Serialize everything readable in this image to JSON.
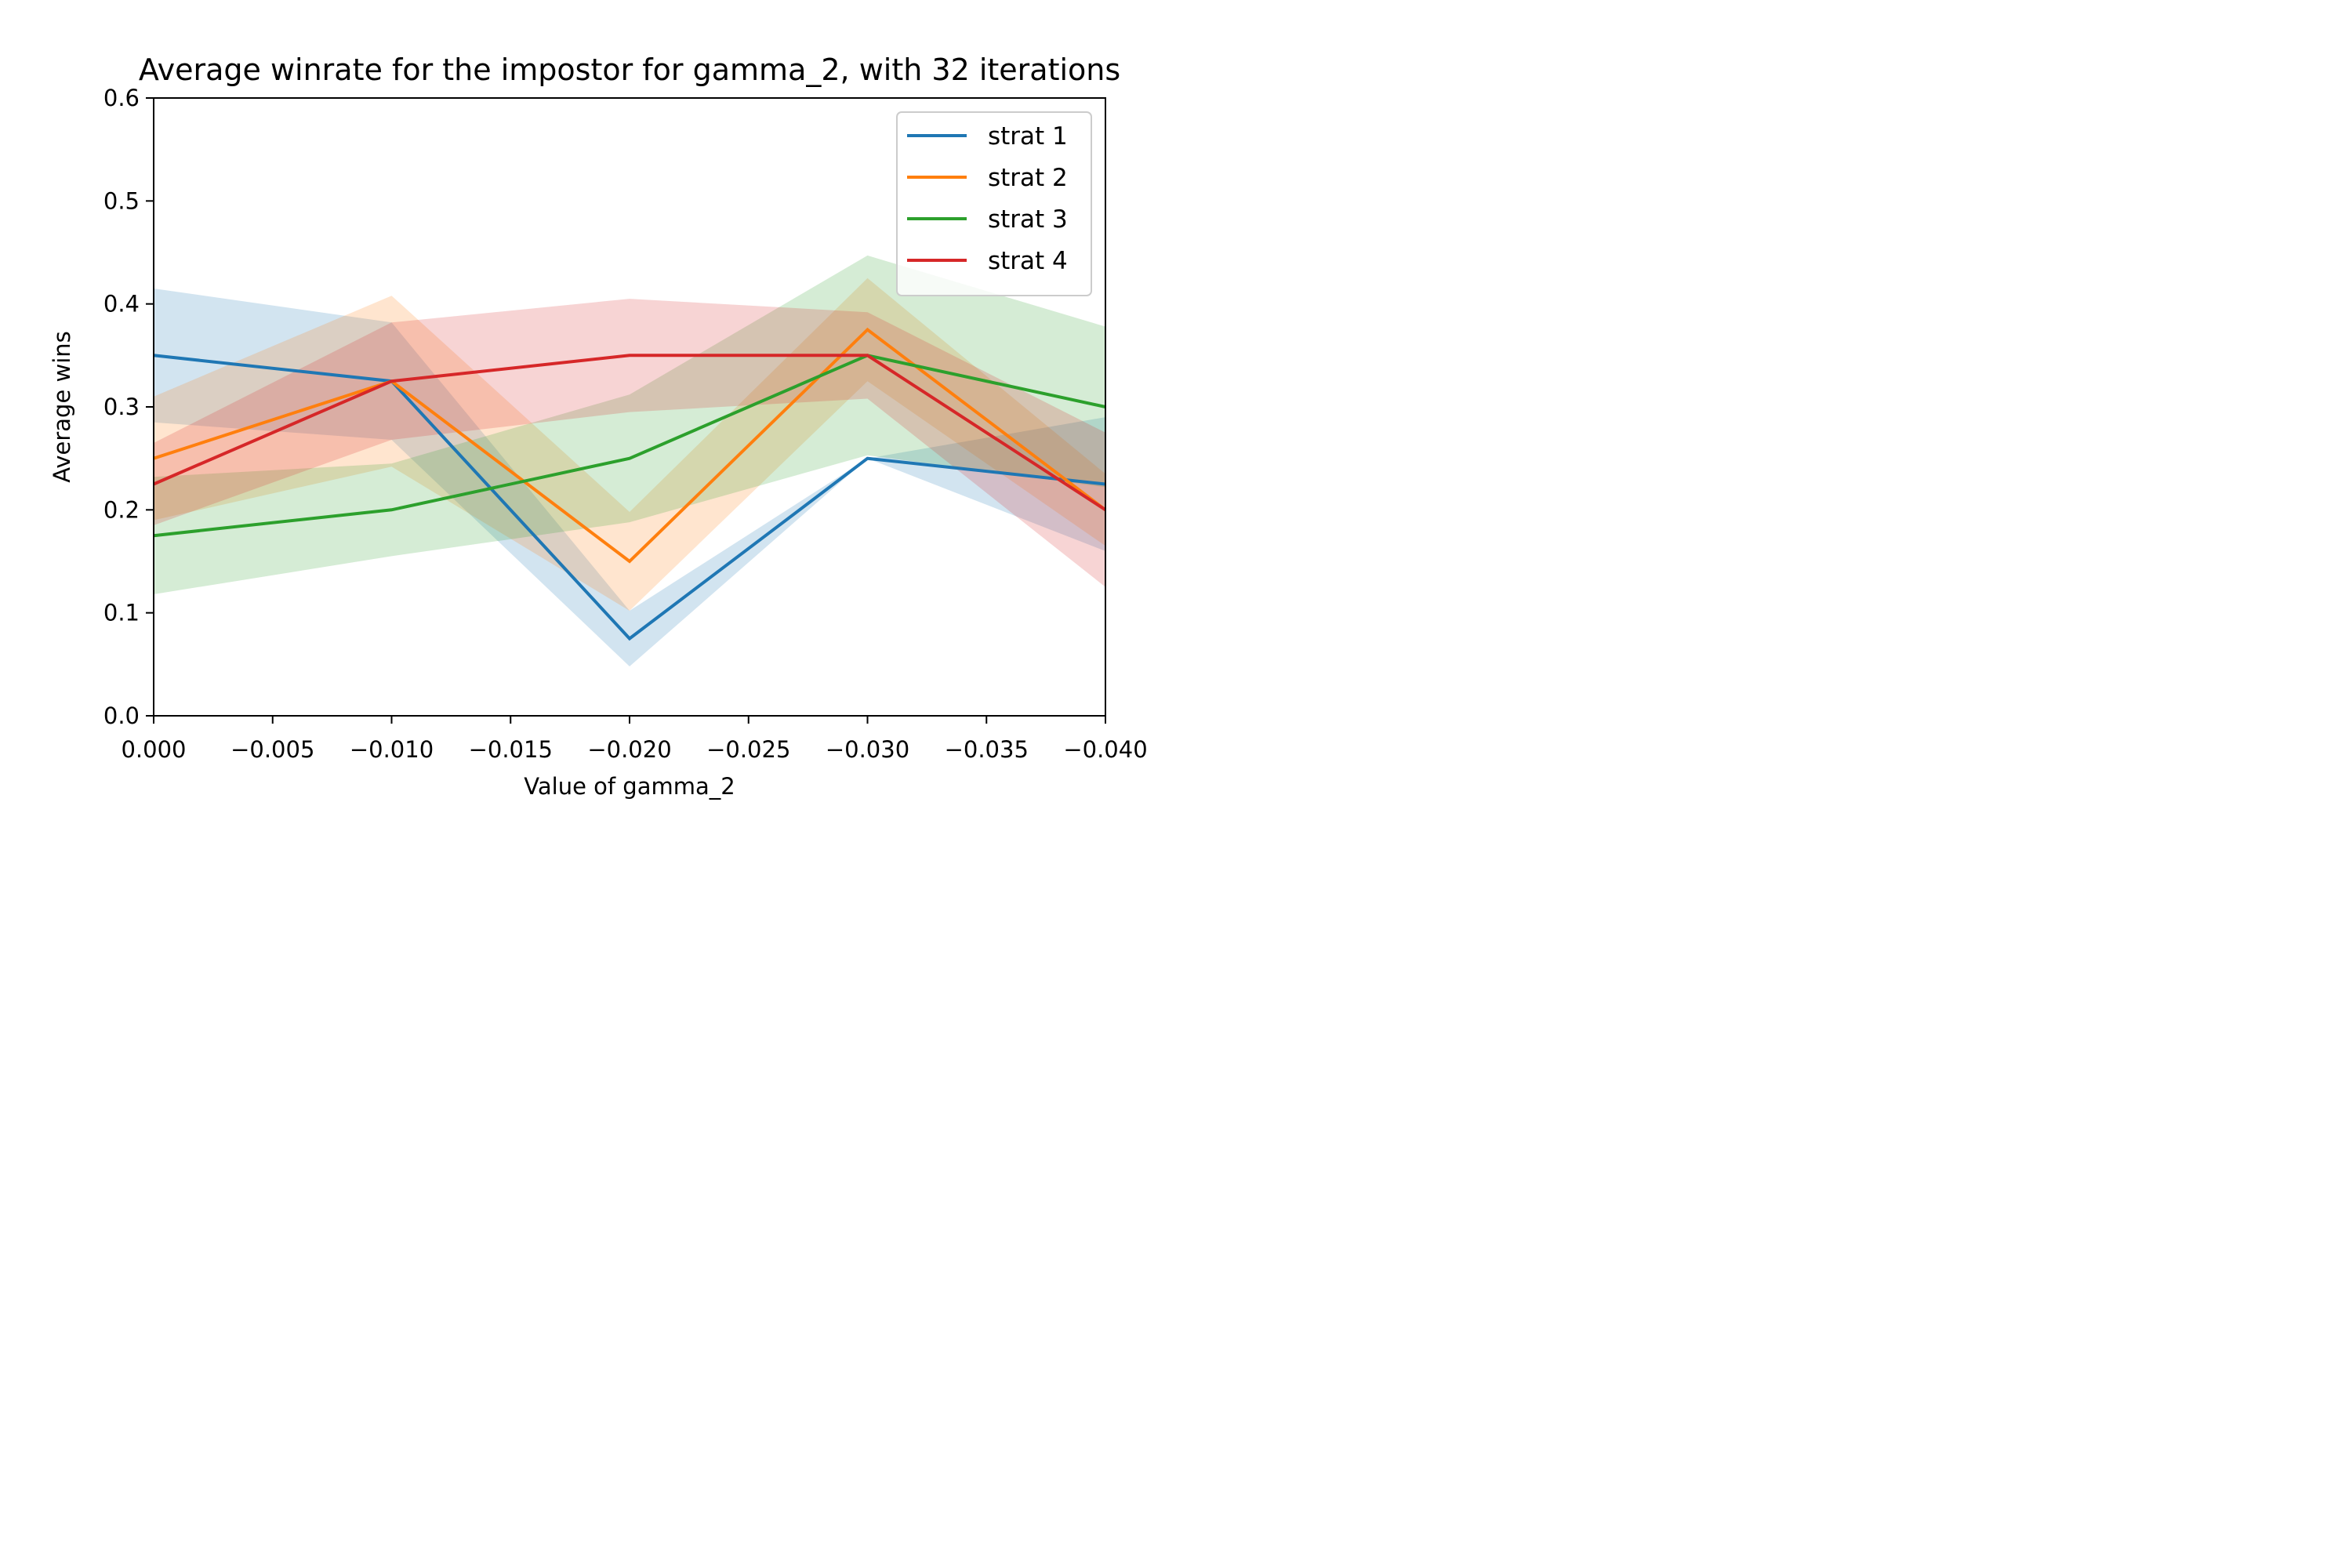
{
  "chart_data": {
    "type": "line",
    "title": "Average winrate for the impostor for gamma_2, with 32 iterations",
    "xlabel": "Value of gamma_2",
    "ylabel": "Average wins",
    "xlim": [
      0.0,
      -0.04
    ],
    "ylim": [
      0.0,
      0.6
    ],
    "x_ticks": [
      "0.000",
      "−0.005",
      "−0.010",
      "−0.015",
      "−0.020",
      "−0.025",
      "−0.030",
      "−0.035",
      "−0.040"
    ],
    "y_ticks": [
      "0.0",
      "0.1",
      "0.2",
      "0.3",
      "0.4",
      "0.5",
      "0.6"
    ],
    "x_tick_values": [
      0.0,
      -0.005,
      -0.01,
      -0.015,
      -0.02,
      -0.025,
      -0.03,
      -0.035,
      -0.04
    ],
    "y_tick_values": [
      0.0,
      0.1,
      0.2,
      0.3,
      0.4,
      0.5,
      0.6
    ],
    "x": [
      0.0,
      -0.01,
      -0.02,
      -0.03,
      -0.04
    ],
    "grid": false,
    "legend_position": "top-right",
    "series": [
      {
        "name": "strat 1",
        "color": "#1f77b4",
        "values": [
          0.35,
          0.325,
          0.075,
          0.25,
          0.225
        ],
        "lower": [
          0.285,
          0.268,
          0.048,
          0.25,
          0.16
        ],
        "upper": [
          0.415,
          0.382,
          0.102,
          0.25,
          0.29
        ]
      },
      {
        "name": "strat 2",
        "color": "#ff7f0e",
        "values": [
          0.25,
          0.325,
          0.15,
          0.375,
          0.2
        ],
        "lower": [
          0.19,
          0.242,
          0.102,
          0.325,
          0.165
        ],
        "upper": [
          0.31,
          0.408,
          0.198,
          0.425,
          0.235
        ]
      },
      {
        "name": "strat 3",
        "color": "#2ca02c",
        "values": [
          0.175,
          0.2,
          0.25,
          0.35,
          0.3
        ],
        "lower": [
          0.118,
          0.155,
          0.188,
          0.253,
          0.222
        ],
        "upper": [
          0.232,
          0.245,
          0.312,
          0.447,
          0.378
        ]
      },
      {
        "name": "strat 4",
        "color": "#d62728",
        "values": [
          0.225,
          0.325,
          0.35,
          0.35,
          0.2
        ],
        "lower": [
          0.185,
          0.268,
          0.295,
          0.308,
          0.125
        ],
        "upper": [
          0.265,
          0.382,
          0.405,
          0.392,
          0.275
        ]
      }
    ]
  }
}
